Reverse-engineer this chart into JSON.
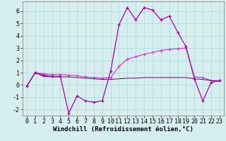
{
  "x": [
    0,
    1,
    2,
    3,
    4,
    5,
    6,
    7,
    8,
    9,
    10,
    11,
    12,
    13,
    14,
    15,
    16,
    17,
    18,
    19,
    20,
    21,
    22,
    23
  ],
  "y_volatile": [
    -0.1,
    1.0,
    0.8,
    0.7,
    0.7,
    -2.3,
    -0.9,
    -1.3,
    -1.4,
    -1.3,
    1.1,
    4.9,
    6.3,
    5.3,
    6.3,
    6.1,
    5.3,
    5.6,
    4.3,
    3.1,
    0.5,
    -1.3,
    0.2,
    0.35
  ],
  "y_rising": [
    -0.1,
    1.0,
    0.9,
    0.85,
    0.85,
    0.8,
    0.75,
    0.65,
    0.6,
    0.55,
    0.6,
    1.5,
    2.1,
    2.3,
    2.5,
    2.65,
    2.8,
    2.9,
    2.95,
    3.0,
    0.65,
    0.6,
    0.35,
    0.35
  ],
  "y_flat": [
    -0.1,
    1.0,
    0.7,
    0.65,
    0.65,
    0.65,
    0.6,
    0.55,
    0.5,
    0.45,
    0.45,
    0.5,
    0.55,
    0.55,
    0.6,
    0.6,
    0.6,
    0.6,
    0.6,
    0.6,
    0.5,
    0.45,
    0.35,
    0.3
  ],
  "line_color1": "#aa00aa",
  "line_color2": "#cc44cc",
  "line_color3": "#660066",
  "bg_color": "#d6eeee",
  "grid_color": "#b8dede",
  "xlabel": "Windchill (Refroidissement éolien,°C)",
  "ylim": [
    -2.5,
    6.8
  ],
  "xlim": [
    -0.5,
    23.5
  ],
  "yticks": [
    -2,
    -1,
    0,
    1,
    2,
    3,
    4,
    5,
    6
  ],
  "xticks": [
    0,
    1,
    2,
    3,
    4,
    5,
    6,
    7,
    8,
    9,
    10,
    11,
    12,
    13,
    14,
    15,
    16,
    17,
    18,
    19,
    20,
    21,
    22,
    23
  ],
  "xlabel_fontsize": 6.5,
  "tick_fontsize": 6,
  "line_width": 0.9,
  "marker": "+"
}
